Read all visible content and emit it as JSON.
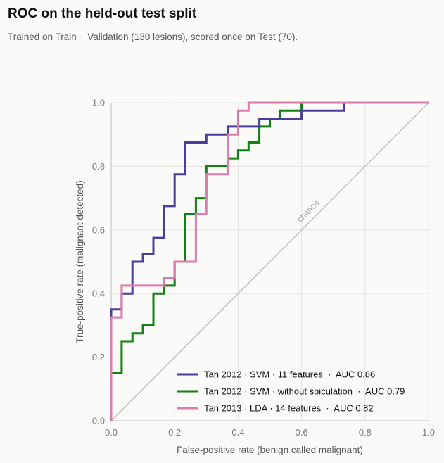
{
  "header": {
    "title": "ROC on the held-out test split",
    "subtitle": "Trained on Train + Validation (130 lesions), scored once on Test (70)."
  },
  "chart_data": {
    "type": "line",
    "step": true,
    "xlabel": "False-positive rate (benign called malignant)",
    "ylabel": "True-positive rate (malignant detected)",
    "xlim": [
      0,
      1
    ],
    "ylim": [
      0,
      1
    ],
    "xticks": [
      "0.0",
      "0.2",
      "0.4",
      "0.6",
      "0.8",
      "1.0"
    ],
    "yticks": [
      "0.0",
      "0.2",
      "0.4",
      "0.6",
      "0.8",
      "1.0"
    ],
    "grid": true,
    "legend_position": "bottom-right",
    "reference_line": {
      "label": "chance",
      "color": "#bbbbbb"
    },
    "series": [
      {
        "name": "Tan 2012 · SVM · 11 features  ·  AUC 0.86",
        "color": "#4a3d9b",
        "points": [
          [
            0,
            0
          ],
          [
            0,
            0.35
          ],
          [
            0.033,
            0.35
          ],
          [
            0.033,
            0.4
          ],
          [
            0.067,
            0.4
          ],
          [
            0.067,
            0.5
          ],
          [
            0.1,
            0.5
          ],
          [
            0.1,
            0.525
          ],
          [
            0.133,
            0.525
          ],
          [
            0.133,
            0.575
          ],
          [
            0.167,
            0.575
          ],
          [
            0.167,
            0.675
          ],
          [
            0.2,
            0.675
          ],
          [
            0.2,
            0.775
          ],
          [
            0.233,
            0.775
          ],
          [
            0.233,
            0.875
          ],
          [
            0.3,
            0.875
          ],
          [
            0.3,
            0.9
          ],
          [
            0.367,
            0.9
          ],
          [
            0.367,
            0.925
          ],
          [
            0.467,
            0.925
          ],
          [
            0.467,
            0.95
          ],
          [
            0.6,
            0.95
          ],
          [
            0.6,
            0.975
          ],
          [
            0.733,
            0.975
          ],
          [
            0.733,
            1.0
          ],
          [
            1.0,
            1.0
          ]
        ]
      },
      {
        "name": "Tan 2012 · SVM · without spiculation  ·  AUC 0.79",
        "color": "#128012",
        "points": [
          [
            0,
            0
          ],
          [
            0,
            0.15
          ],
          [
            0.033,
            0.15
          ],
          [
            0.033,
            0.25
          ],
          [
            0.067,
            0.25
          ],
          [
            0.067,
            0.275
          ],
          [
            0.1,
            0.275
          ],
          [
            0.1,
            0.3
          ],
          [
            0.133,
            0.3
          ],
          [
            0.133,
            0.4
          ],
          [
            0.167,
            0.4
          ],
          [
            0.167,
            0.425
          ],
          [
            0.2,
            0.425
          ],
          [
            0.2,
            0.5
          ],
          [
            0.233,
            0.5
          ],
          [
            0.233,
            0.65
          ],
          [
            0.267,
            0.65
          ],
          [
            0.267,
            0.7
          ],
          [
            0.3,
            0.7
          ],
          [
            0.3,
            0.8
          ],
          [
            0.367,
            0.8
          ],
          [
            0.367,
            0.825
          ],
          [
            0.4,
            0.825
          ],
          [
            0.4,
            0.85
          ],
          [
            0.433,
            0.85
          ],
          [
            0.433,
            0.875
          ],
          [
            0.467,
            0.875
          ],
          [
            0.467,
            0.925
          ],
          [
            0.5,
            0.925
          ],
          [
            0.5,
            0.95
          ],
          [
            0.533,
            0.95
          ],
          [
            0.533,
            0.975
          ],
          [
            0.6,
            0.975
          ],
          [
            0.6,
            1.0
          ],
          [
            1.0,
            1.0
          ]
        ]
      },
      {
        "name": "Tan 2013 · LDA · 14 features  ·  AUC 0.82",
        "color": "#e07aaa",
        "points": [
          [
            0,
            0
          ],
          [
            0,
            0.325
          ],
          [
            0.033,
            0.325
          ],
          [
            0.033,
            0.425
          ],
          [
            0.167,
            0.425
          ],
          [
            0.167,
            0.45
          ],
          [
            0.2,
            0.45
          ],
          [
            0.2,
            0.5
          ],
          [
            0.267,
            0.5
          ],
          [
            0.267,
            0.65
          ],
          [
            0.3,
            0.65
          ],
          [
            0.3,
            0.775
          ],
          [
            0.367,
            0.775
          ],
          [
            0.367,
            0.9
          ],
          [
            0.4,
            0.9
          ],
          [
            0.4,
            0.975
          ],
          [
            0.433,
            0.975
          ],
          [
            0.433,
            1.0
          ],
          [
            1.0,
            1.0
          ]
        ]
      }
    ]
  }
}
